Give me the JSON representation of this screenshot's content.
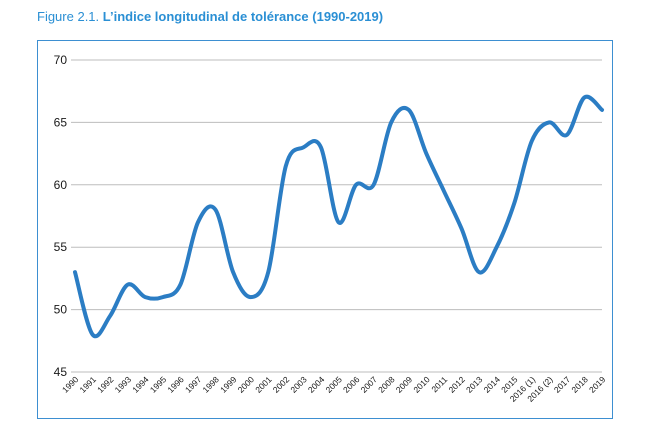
{
  "figure": {
    "number": "Figure 2.1.",
    "title": "L’indice longitudinal de tolérance (1990-2019)"
  },
  "colors": {
    "line": "#2b7dc4",
    "frame": "#3d8fd1",
    "title": "#2a8fd4",
    "grid": "#bdbdbd"
  },
  "chart_data": {
    "type": "line",
    "title": "L’indice longitudinal de tolérance (1990-2019)",
    "xlabel": "",
    "ylabel": "",
    "ylim": [
      45,
      70
    ],
    "yticks": [
      45,
      50,
      55,
      60,
      65,
      70
    ],
    "grid": true,
    "legend": "none",
    "categories": [
      "1990",
      "1991",
      "1992",
      "1993",
      "1994",
      "1995",
      "1996",
      "1997",
      "1998",
      "1999",
      "2000",
      "2001",
      "2002",
      "2003",
      "2004",
      "2005",
      "2006",
      "2007",
      "2008",
      "2009",
      "2010",
      "2011",
      "2012",
      "2013",
      "2014",
      "2015",
      "2016 (1)",
      "2016 (2)",
      "2017",
      "2018",
      "2019"
    ],
    "series": [
      {
        "values": [
          53,
          48,
          49.5,
          52,
          51,
          51,
          52,
          57,
          58,
          53,
          51,
          53,
          61.5,
          63,
          63,
          57,
          60,
          60,
          65,
          66,
          62.5,
          59.5,
          56.5,
          53,
          55,
          58.5,
          63.5,
          65,
          64,
          67,
          66
        ]
      }
    ]
  }
}
